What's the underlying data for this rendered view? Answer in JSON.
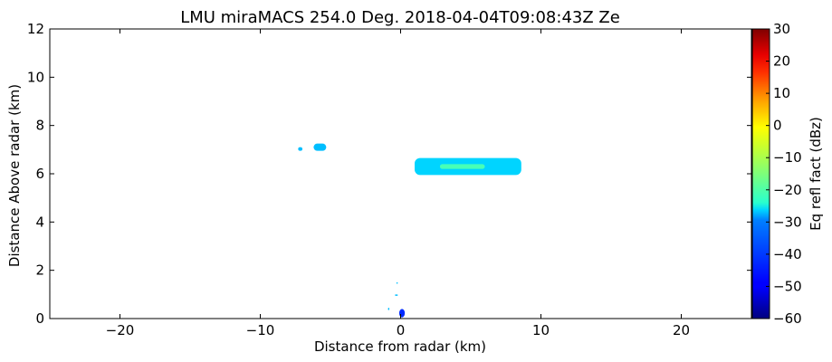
{
  "chart_data": {
    "type": "heatmap",
    "title": "LMU miraMACS 254.0 Deg. 2018-04-04T09:08:43Z  Ze",
    "xlabel": "Distance from radar (km)",
    "ylabel": "Distance Above radar  (km)",
    "xlim": [
      -25,
      25
    ],
    "ylim": [
      0,
      12
    ],
    "x_ticks": [
      -20,
      -10,
      0,
      10,
      20
    ],
    "x_tick_labels": [
      "−20",
      "−10",
      "0",
      "10",
      "20"
    ],
    "y_ticks": [
      0,
      2,
      4,
      6,
      8,
      10,
      12
    ],
    "y_tick_labels": [
      "0",
      "2",
      "4",
      "6",
      "8",
      "10",
      "12"
    ],
    "colorbar": {
      "label": "Eq refl fact (dBz)",
      "range": [
        -60,
        30
      ],
      "ticks": [
        30,
        20,
        10,
        0,
        -10,
        -20,
        -30,
        -40,
        -50,
        -60
      ],
      "tick_labels": [
        "30",
        "20",
        "10",
        "0",
        "−10",
        "−20",
        "−30",
        "−40",
        "−50",
        "−60"
      ],
      "colormap": "jet"
    },
    "grid": false,
    "echoes": [
      {
        "x": [
          -7.3,
          -7.0
        ],
        "y": [
          6.95,
          7.1
        ],
        "dbz": -32
      },
      {
        "x": [
          -6.2,
          -5.3
        ],
        "y": [
          6.95,
          7.25
        ],
        "dbz": -32
      },
      {
        "x": [
          1.0,
          8.6
        ],
        "y": [
          5.95,
          6.65
        ],
        "dbz": -30
      },
      {
        "x": [
          2.8,
          6.0
        ],
        "y": [
          6.2,
          6.4
        ],
        "dbz": -20
      },
      {
        "x": [
          -0.3,
          -0.2
        ],
        "y": [
          1.45,
          1.5
        ],
        "dbz": -32
      },
      {
        "x": [
          -0.4,
          -0.2
        ],
        "y": [
          0.95,
          1.0
        ],
        "dbz": -32
      },
      {
        "x": [
          -0.9,
          -0.8
        ],
        "y": [
          0.35,
          0.45
        ],
        "dbz": -32
      },
      {
        "x": [
          -0.1,
          0.3
        ],
        "y": [
          0.05,
          0.4
        ],
        "dbz": -45
      }
    ]
  }
}
